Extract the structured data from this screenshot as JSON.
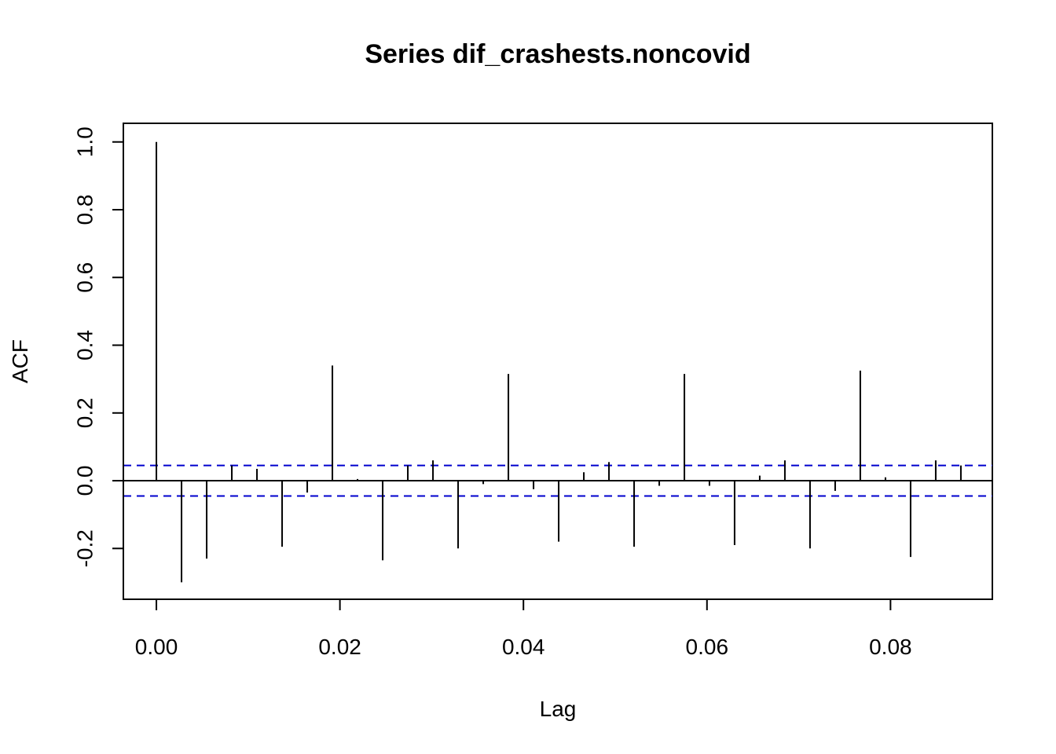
{
  "chart_data": {
    "type": "bar",
    "title": "Series  dif_crashests.noncovid",
    "xlabel": "Lag",
    "ylabel": "ACF",
    "xlim": [
      -0.0036,
      0.0911
    ],
    "ylim": [
      -0.35,
      1.055
    ],
    "x_ticks": [
      0,
      0.02,
      0.04,
      0.06,
      0.08
    ],
    "x_tick_labels": [
      "0.00",
      "0.02",
      "0.04",
      "0.06",
      "0.08"
    ],
    "y_ticks": [
      -0.2,
      0,
      0.2,
      0.4,
      0.6,
      0.8,
      1.0
    ],
    "y_tick_labels": [
      "-0.2",
      "0.0",
      "0.2",
      "0.4",
      "0.6",
      "0.8",
      "1.0"
    ],
    "confidence_band": 0.045,
    "colors": {
      "bars": "#000000",
      "band": "#0000cd",
      "baseline": "#000000"
    },
    "series": [
      {
        "x": [
          0.0,
          0.00274,
          0.00548,
          0.00822,
          0.01096,
          0.0137,
          0.01644,
          0.01918,
          0.02192,
          0.02466,
          0.0274,
          0.03014,
          0.03288,
          0.03562,
          0.03836,
          0.0411,
          0.04384,
          0.04658,
          0.04932,
          0.05206,
          0.0548,
          0.05754,
          0.06027,
          0.06301,
          0.06575,
          0.06849,
          0.07123,
          0.07397,
          0.07671,
          0.07945,
          0.08219,
          0.08493,
          0.08767
        ],
        "values": [
          1.0,
          -0.3,
          -0.23,
          0.045,
          0.035,
          -0.195,
          -0.035,
          0.34,
          0.005,
          -0.235,
          0.045,
          0.06,
          -0.2,
          -0.01,
          0.315,
          -0.025,
          -0.18,
          0.025,
          0.055,
          -0.195,
          -0.015,
          0.315,
          -0.015,
          -0.19,
          0.015,
          0.06,
          -0.2,
          -0.03,
          0.325,
          0.01,
          -0.225,
          0.06,
          0.045
        ]
      }
    ]
  }
}
